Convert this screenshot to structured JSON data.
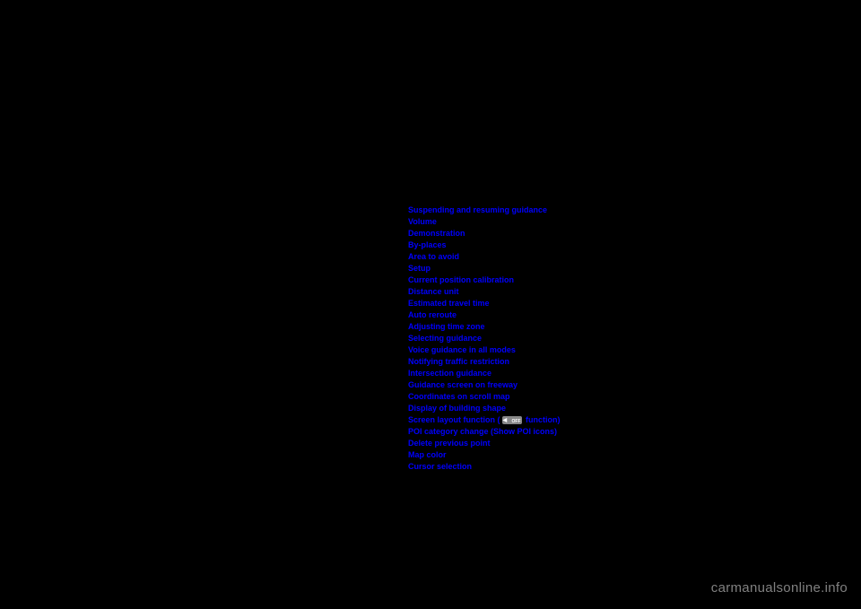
{
  "links": [
    {
      "label": "Suspending and resuming guidance",
      "name": "link-suspending-resuming-guidance"
    },
    {
      "label": "Volume",
      "name": "link-volume"
    },
    {
      "label": "Demonstration",
      "name": "link-demonstration"
    },
    {
      "label": "By-places",
      "name": "link-by-places"
    },
    {
      "label": "Area to avoid",
      "name": "link-area-to-avoid"
    },
    {
      "label": "Setup",
      "name": "link-setup"
    },
    {
      "label": "Current position calibration",
      "name": "link-current-position-calibration"
    },
    {
      "label": "Distance unit",
      "name": "link-distance-unit"
    },
    {
      "label": "Estimated travel time",
      "name": "link-estimated-travel-time"
    },
    {
      "label": "Auto reroute",
      "name": "link-auto-reroute"
    },
    {
      "label": "Adjusting time zone",
      "name": "link-adjusting-time-zone"
    },
    {
      "label": "Selecting guidance",
      "name": "link-selecting-guidance"
    },
    {
      "label": "Voice guidance in all modes",
      "name": "link-voice-guidance-all-modes"
    },
    {
      "label": "Notifying traffic restriction",
      "name": "link-notifying-traffic-restriction"
    },
    {
      "label": "Intersection guidance",
      "name": "link-intersection-guidance"
    },
    {
      "label": "Guidance screen on freeway",
      "name": "link-guidance-screen-freeway"
    },
    {
      "label": "Coordinates on scroll map",
      "name": "link-coordinates-scroll-map"
    },
    {
      "label": "Display of building shape",
      "name": "link-display-building-shape"
    },
    {
      "label": "Screen layout function (",
      "name": "link-screen-layout-function",
      "hasIcon": true,
      "suffix": " function)"
    },
    {
      "label": "POI category change (Show POI icons)",
      "name": "link-poi-category-change"
    },
    {
      "label": "Delete previous point",
      "name": "link-delete-previous-point"
    },
    {
      "label": "Map color",
      "name": "link-map-color"
    },
    {
      "label": "Cursor selection",
      "name": "link-cursor-selection"
    }
  ],
  "watermark": "carmanualsonline.info",
  "colors": {
    "background": "#000000",
    "link": "#0000ff",
    "watermark": "#808080"
  }
}
